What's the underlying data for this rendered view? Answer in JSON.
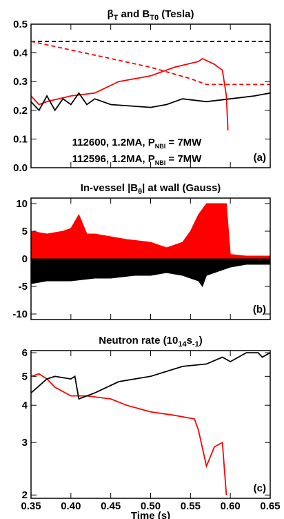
{
  "chart_data": [
    {
      "type": "line",
      "title": [
        "β",
        "T",
        " and B",
        "T0",
        " (Tesla)"
      ],
      "panel_label": "(a)",
      "xlim": [
        0.35,
        0.65
      ],
      "ylim": [
        0,
        0.5
      ],
      "yticks": [
        {
          "value": 0,
          "label": "0.0"
        },
        0.1,
        0.2,
        0.3,
        0.4,
        0.5
      ],
      "legend": "lower center",
      "series": [
        {
          "color": "#000000",
          "dash": true,
          "x": [
            0.35,
            0.4,
            0.45,
            0.5,
            0.55,
            0.6,
            0.65
          ],
          "values": [
            0.44,
            0.44,
            0.44,
            0.44,
            0.44,
            0.44,
            0.44
          ]
        },
        {
          "color": "#ff0000",
          "dash": true,
          "x": [
            0.35,
            0.4,
            0.45,
            0.5,
            0.55,
            0.57,
            0.6,
            0.65
          ],
          "values": [
            0.44,
            0.41,
            0.38,
            0.35,
            0.31,
            0.29,
            0.29,
            0.29
          ]
        },
        {
          "name": [
            "112600, 1.2MA, P",
            "NBI",
            " = 7MW"
          ],
          "color": "#ff0000",
          "x": [
            0.35,
            0.36,
            0.37,
            0.4,
            0.43,
            0.46,
            0.5,
            0.53,
            0.56,
            0.565,
            0.58,
            0.59,
            0.595,
            0.597
          ],
          "values": [
            0.25,
            0.22,
            0.23,
            0.25,
            0.26,
            0.3,
            0.32,
            0.35,
            0.37,
            0.38,
            0.36,
            0.34,
            0.25,
            0.13
          ]
        },
        {
          "name": [
            "112596, 1.2MA, P",
            "NBI",
            " = 7MW"
          ],
          "color": "#000000",
          "x": [
            0.35,
            0.36,
            0.37,
            0.38,
            0.39,
            0.4,
            0.41,
            0.42,
            0.43,
            0.45,
            0.5,
            0.52,
            0.54,
            0.57,
            0.6,
            0.63,
            0.65
          ],
          "values": [
            0.23,
            0.2,
            0.25,
            0.2,
            0.24,
            0.22,
            0.26,
            0.22,
            0.24,
            0.22,
            0.21,
            0.22,
            0.24,
            0.23,
            0.24,
            0.25,
            0.26
          ]
        }
      ]
    },
    {
      "type": "area",
      "title": [
        "In-vessel |B",
        "θ",
        "| at wall (Gauss)"
      ],
      "panel_label": "(b)",
      "xlim": [
        0.35,
        0.65
      ],
      "ylim": [
        -11,
        11
      ],
      "yticks": [
        -10,
        -5,
        0,
        5,
        10
      ],
      "series": [
        {
          "color": "#ff0000",
          "x": [
            0.35,
            0.37,
            0.39,
            0.4,
            0.41,
            0.42,
            0.43,
            0.45,
            0.47,
            0.5,
            0.52,
            0.54,
            0.55,
            0.56,
            0.57,
            0.58,
            0.59,
            0.595,
            0.6,
            0.62,
            0.65
          ],
          "values": [
            5,
            4.5,
            5,
            5.5,
            8,
            4.5,
            4.5,
            4,
            3.5,
            3,
            2,
            3,
            5,
            8,
            10,
            10,
            10,
            10,
            0.8,
            0.5,
            0.5
          ]
        },
        {
          "color": "#000000",
          "x": [
            0.35,
            0.37,
            0.4,
            0.43,
            0.45,
            0.48,
            0.5,
            0.52,
            0.54,
            0.56,
            0.565,
            0.57,
            0.59,
            0.6,
            0.62,
            0.65
          ],
          "values": [
            -4.5,
            -4,
            -4,
            -3.5,
            -3.5,
            -3,
            -3,
            -2.5,
            -3,
            -4,
            -5,
            -3,
            -2,
            -1.5,
            -1,
            -1
          ]
        }
      ]
    },
    {
      "type": "line",
      "title": [
        "Neutron rate (10",
        "14",
        "s",
        "-1",
        ")"
      ],
      "panel_label": "(c)",
      "xlabel": "Time (s)",
      "xlim": [
        0.35,
        0.65
      ],
      "xticks": [
        0.35,
        {
          "value": 0.4,
          "label": "0.40"
        },
        0.45,
        {
          "value": 0.5,
          "label": "0.50"
        },
        0.55,
        {
          "value": 0.6,
          "label": "0.60"
        },
        0.65
      ],
      "ylim": [
        1.95,
        6.1
      ],
      "ylog": true,
      "yticks": [
        2,
        3,
        4,
        5,
        6
      ],
      "series": [
        {
          "color": "#ff0000",
          "x": [
            0.35,
            0.36,
            0.37,
            0.38,
            0.4,
            0.42,
            0.45,
            0.47,
            0.5,
            0.53,
            0.555,
            0.56,
            0.57,
            0.58,
            0.59,
            0.595
          ],
          "values": [
            5.0,
            5.1,
            4.9,
            4.6,
            4.3,
            4.3,
            4.2,
            4.0,
            3.8,
            3.7,
            3.6,
            3.3,
            2.5,
            2.9,
            3.0,
            2.0
          ]
        },
        {
          "color": "#000000",
          "x": [
            0.35,
            0.37,
            0.38,
            0.4,
            0.405,
            0.41,
            0.43,
            0.46,
            0.5,
            0.54,
            0.57,
            0.59,
            0.6,
            0.62,
            0.635,
            0.64,
            0.65
          ],
          "values": [
            4.4,
            4.9,
            5.0,
            4.9,
            5.0,
            4.2,
            4.4,
            4.8,
            5.0,
            5.4,
            5.5,
            5.8,
            5.6,
            6.0,
            6.0,
            5.8,
            6.0
          ]
        }
      ]
    }
  ]
}
